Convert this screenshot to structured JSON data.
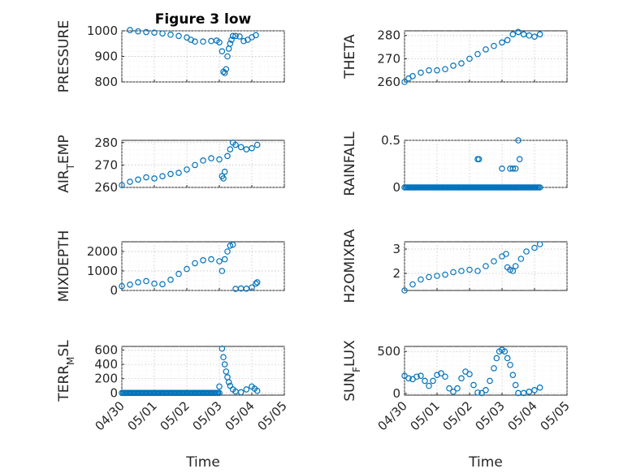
{
  "colors": {
    "marker": "#0072BD",
    "axes": "#262626"
  },
  "chart_data": [
    {
      "type": "scatter",
      "panel": 0,
      "title": "Figure 3 low",
      "ylabel": "PRESSURE",
      "ylabel_sub": "",
      "ylim": [
        800,
        1000
      ],
      "yticks": [
        800,
        900,
        1000
      ],
      "xlim": [
        "04/30",
        "05/05"
      ],
      "xticks": [
        "04/30",
        "05/01",
        "05/02",
        "05/03",
        "05/04",
        "05/05"
      ],
      "show_xticklabels": false,
      "xlabel": "",
      "grid": true,
      "points": [
        [
          "04/30 06:00",
          1003
        ],
        [
          "04/30 12:00",
          998
        ],
        [
          "04/30 18:00",
          995
        ],
        [
          "05/01 00:00",
          993
        ],
        [
          "05/01 06:00",
          990
        ],
        [
          "05/01 12:00",
          985
        ],
        [
          "05/01 18:00",
          980
        ],
        [
          "05/02 00:00",
          974
        ],
        [
          "05/02 03:00",
          965
        ],
        [
          "05/02 06:00",
          958
        ],
        [
          "05/02 12:00",
          958
        ],
        [
          "05/02 18:00",
          960
        ],
        [
          "05/02 22:00",
          962
        ],
        [
          "05/03 00:00",
          955
        ],
        [
          "05/03 02:00",
          920
        ],
        [
          "05/03 03:00",
          840
        ],
        [
          "05/03 04:00",
          835
        ],
        [
          "05/03 05:00",
          850
        ],
        [
          "05/03 06:00",
          900
        ],
        [
          "05/03 07:00",
          930
        ],
        [
          "05/03 08:00",
          950
        ],
        [
          "05/03 09:00",
          965
        ],
        [
          "05/03 10:00",
          980
        ],
        [
          "05/03 12:00",
          980
        ],
        [
          "05/03 15:00",
          978
        ],
        [
          "05/03 18:00",
          960
        ],
        [
          "05/03 21:00",
          965
        ],
        [
          "05/04 00:00",
          975
        ],
        [
          "05/04 03:00",
          983
        ]
      ]
    },
    {
      "type": "scatter",
      "panel": 1,
      "title": "",
      "ylabel": "THETA",
      "ylabel_sub": "",
      "ylim": [
        260,
        282
      ],
      "yticks": [
        260,
        270,
        280
      ],
      "xlim": [
        "04/30",
        "05/05"
      ],
      "xticks": [
        "04/30",
        "05/01",
        "05/02",
        "05/03",
        "05/04",
        "05/05"
      ],
      "show_xticklabels": false,
      "xlabel": "",
      "grid": true,
      "points": [
        [
          "04/30 00:00",
          260
        ],
        [
          "04/30 03:00",
          261.5
        ],
        [
          "04/30 06:00",
          262.5
        ],
        [
          "04/30 12:00",
          264
        ],
        [
          "04/30 18:00",
          265
        ],
        [
          "05/01 00:00",
          265
        ],
        [
          "05/01 06:00",
          265.5
        ],
        [
          "05/01 12:00",
          267
        ],
        [
          "05/01 18:00",
          268
        ],
        [
          "05/02 00:00",
          270
        ],
        [
          "05/02 06:00",
          272
        ],
        [
          "05/02 12:00",
          274
        ],
        [
          "05/02 18:00",
          275.5
        ],
        [
          "05/03 00:00",
          277
        ],
        [
          "05/03 04:00",
          278
        ],
        [
          "05/03 08:00",
          280.5
        ],
        [
          "05/03 12:00",
          281.5
        ],
        [
          "05/03 16:00",
          280.5
        ],
        [
          "05/03 20:00",
          280
        ],
        [
          "05/04 00:00",
          279.5
        ],
        [
          "05/04 04:00",
          280.5
        ]
      ]
    },
    {
      "type": "scatter",
      "panel": 2,
      "title": "",
      "ylabel": "AIR",
      "ylabel_sub": "T",
      "ylabel_rest": "EMP",
      "ylim": [
        260,
        281
      ],
      "yticks": [
        260,
        270,
        280
      ],
      "xlim": [
        "04/30",
        "05/05"
      ],
      "xticks": [
        "04/30",
        "05/01",
        "05/02",
        "05/03",
        "05/04",
        "05/05"
      ],
      "show_xticklabels": false,
      "xlabel": "",
      "grid": true,
      "points": [
        [
          "04/30 00:00",
          261
        ],
        [
          "04/30 06:00",
          262.5
        ],
        [
          "04/30 12:00",
          263.5
        ],
        [
          "04/30 18:00",
          264.5
        ],
        [
          "05/01 00:00",
          264
        ],
        [
          "05/01 06:00",
          265
        ],
        [
          "05/01 12:00",
          266
        ],
        [
          "05/01 18:00",
          266.5
        ],
        [
          "05/02 00:00",
          268
        ],
        [
          "05/02 06:00",
          270
        ],
        [
          "05/02 12:00",
          272
        ],
        [
          "05/02 18:00",
          273
        ],
        [
          "05/03 00:00",
          272.5
        ],
        [
          "05/03 02:00",
          265
        ],
        [
          "05/03 03:00",
          264
        ],
        [
          "05/03 04:00",
          267
        ],
        [
          "05/03 06:00",
          274
        ],
        [
          "05/03 08:00",
          277
        ],
        [
          "05/03 10:00",
          280
        ],
        [
          "05/03 12:00",
          279
        ],
        [
          "05/03 16:00",
          278
        ],
        [
          "05/03 20:00",
          277
        ],
        [
          "05/04 00:00",
          277.5
        ],
        [
          "05/04 04:00",
          279
        ]
      ]
    },
    {
      "type": "scatter",
      "panel": 3,
      "title": "",
      "ylabel": "RAINFALL",
      "ylabel_sub": "",
      "ylim": [
        0,
        0.5
      ],
      "yticks": [
        0,
        0.5
      ],
      "xlim": [
        "04/30",
        "05/05"
      ],
      "xticks": [
        "04/30",
        "05/01",
        "05/02",
        "05/03",
        "05/04",
        "05/05"
      ],
      "show_xticklabels": false,
      "xlabel": "",
      "grid": true,
      "baseline": {
        "from": "04/30 00:00",
        "to": "05/04 04:00",
        "value": 0
      },
      "points": [
        [
          "05/02 06:00",
          0.3
        ],
        [
          "05/02 07:00",
          0.3
        ],
        [
          "05/03 00:00",
          0.2
        ],
        [
          "05/03 06:00",
          0.2
        ],
        [
          "05/03 08:00",
          0.2
        ],
        [
          "05/03 10:00",
          0.2
        ],
        [
          "05/03 12:00",
          0.5
        ],
        [
          "05/03 13:00",
          0.3
        ]
      ]
    },
    {
      "type": "scatter",
      "panel": 4,
      "title": "",
      "ylabel": "MIXDEPTH",
      "ylabel_sub": "",
      "ylim": [
        0,
        2500
      ],
      "yticks": [
        0,
        1000,
        2000
      ],
      "xlim": [
        "04/30",
        "05/05"
      ],
      "xticks": [
        "04/30",
        "05/01",
        "05/02",
        "05/03",
        "05/04",
        "05/05"
      ],
      "show_xticklabels": false,
      "xlabel": "",
      "grid": true,
      "points": [
        [
          "04/30 00:00",
          220
        ],
        [
          "04/30 06:00",
          300
        ],
        [
          "04/30 12:00",
          420
        ],
        [
          "04/30 18:00",
          480
        ],
        [
          "05/01 00:00",
          350
        ],
        [
          "05/01 06:00",
          320
        ],
        [
          "05/01 12:00",
          550
        ],
        [
          "05/01 18:00",
          850
        ],
        [
          "05/02 00:00",
          1100
        ],
        [
          "05/02 06:00",
          1400
        ],
        [
          "05/02 12:00",
          1550
        ],
        [
          "05/02 18:00",
          1600
        ],
        [
          "05/03 00:00",
          1500
        ],
        [
          "05/03 02:00",
          1000
        ],
        [
          "05/03 04:00",
          1600
        ],
        [
          "05/03 06:00",
          2000
        ],
        [
          "05/03 08:00",
          2300
        ],
        [
          "05/03 10:00",
          2350
        ],
        [
          "05/03 12:00",
          80
        ],
        [
          "05/03 16:00",
          100
        ],
        [
          "05/03 20:00",
          90
        ],
        [
          "05/04 00:00",
          150
        ],
        [
          "05/04 03:00",
          350
        ],
        [
          "05/04 04:00",
          420
        ]
      ]
    },
    {
      "type": "scatter",
      "panel": 5,
      "title": "",
      "ylabel": "H2OMIXRA",
      "ylabel_sub": "",
      "ylim": [
        1.3,
        3.3
      ],
      "yticks": [
        2,
        3
      ],
      "xlim": [
        "04/30",
        "05/05"
      ],
      "xticks": [
        "04/30",
        "05/01",
        "05/02",
        "05/03",
        "05/04",
        "05/05"
      ],
      "show_xticklabels": false,
      "xlabel": "",
      "grid": true,
      "points": [
        [
          "04/30 00:00",
          1.3
        ],
        [
          "04/30 06:00",
          1.55
        ],
        [
          "04/30 12:00",
          1.75
        ],
        [
          "04/30 18:00",
          1.85
        ],
        [
          "05/01 00:00",
          1.9
        ],
        [
          "05/01 06:00",
          1.95
        ],
        [
          "05/01 12:00",
          2.05
        ],
        [
          "05/01 18:00",
          2.1
        ],
        [
          "05/02 00:00",
          2.15
        ],
        [
          "05/02 06:00",
          2.1
        ],
        [
          "05/02 12:00",
          2.3
        ],
        [
          "05/02 18:00",
          2.5
        ],
        [
          "05/03 00:00",
          2.7
        ],
        [
          "05/03 03:00",
          2.8
        ],
        [
          "05/03 04:00",
          2.25
        ],
        [
          "05/03 06:00",
          2.15
        ],
        [
          "05/03 08:00",
          2.1
        ],
        [
          "05/03 10:00",
          2.3
        ],
        [
          "05/03 14:00",
          2.6
        ],
        [
          "05/03 18:00",
          2.9
        ],
        [
          "05/04 00:00",
          3.05
        ],
        [
          "05/04 04:00",
          3.2
        ]
      ]
    },
    {
      "type": "scatter",
      "panel": 6,
      "title": "",
      "ylabel": "TERR",
      "ylabel_sub": "M",
      "ylabel_rest": "SL",
      "ylim": [
        -30,
        650
      ],
      "yticks": [
        0,
        200,
        400,
        600
      ],
      "xlim": [
        "04/30",
        "05/05"
      ],
      "xticks": [
        "04/30",
        "05/01",
        "05/02",
        "05/03",
        "05/04",
        "05/05"
      ],
      "show_xticklabels": true,
      "xlabel": "Time",
      "grid": true,
      "baseline": {
        "from": "04/30 00:00",
        "to": "05/03 00:00",
        "value": 0
      },
      "points": [
        [
          "05/03 00:00",
          90
        ],
        [
          "05/03 02:00",
          620
        ],
        [
          "05/03 03:00",
          500
        ],
        [
          "05/03 04:00",
          400
        ],
        [
          "05/03 05:00",
          300
        ],
        [
          "05/03 06:00",
          220
        ],
        [
          "05/03 07:00",
          150
        ],
        [
          "05/03 08:00",
          100
        ],
        [
          "05/03 10:00",
          50
        ],
        [
          "05/03 12:00",
          20
        ],
        [
          "05/03 16:00",
          10
        ],
        [
          "05/03 20:00",
          50
        ],
        [
          "05/04 00:00",
          90
        ],
        [
          "05/04 02:00",
          60
        ],
        [
          "05/04 04:00",
          30
        ]
      ]
    },
    {
      "type": "scatter",
      "panel": 7,
      "title": "",
      "ylabel": "SUN",
      "ylabel_sub": "F",
      "ylabel_rest": "LUX",
      "ylim": [
        -20,
        560
      ],
      "yticks": [
        0,
        500
      ],
      "xlim": [
        "04/30",
        "05/05"
      ],
      "xticks": [
        "04/30",
        "05/01",
        "05/02",
        "05/03",
        "05/04",
        "05/05"
      ],
      "show_xticklabels": true,
      "xlabel": "Time",
      "grid": true,
      "points": [
        [
          "04/30 00:00",
          210
        ],
        [
          "04/30 03:00",
          180
        ],
        [
          "04/30 06:00",
          170
        ],
        [
          "04/30 09:00",
          200
        ],
        [
          "04/30 12:00",
          210
        ],
        [
          "04/30 15:00",
          150
        ],
        [
          "04/30 18:00",
          90
        ],
        [
          "04/30 21:00",
          150
        ],
        [
          "05/01 00:00",
          220
        ],
        [
          "05/01 03:00",
          240
        ],
        [
          "05/01 06:00",
          200
        ],
        [
          "05/01 09:00",
          60
        ],
        [
          "05/01 12:00",
          20
        ],
        [
          "05/01 15:00",
          60
        ],
        [
          "05/01 18:00",
          180
        ],
        [
          "05/01 21:00",
          260
        ],
        [
          "05/02 00:00",
          230
        ],
        [
          "05/02 03:00",
          100
        ],
        [
          "05/02 06:00",
          10
        ],
        [
          "05/02 09:00",
          5
        ],
        [
          "05/02 12:00",
          40
        ],
        [
          "05/02 15:00",
          150
        ],
        [
          "05/02 18:00",
          300
        ],
        [
          "05/02 20:00",
          420
        ],
        [
          "05/02 22:00",
          500
        ],
        [
          "05/03 00:00",
          520
        ],
        [
          "05/03 02:00",
          500
        ],
        [
          "05/03 04:00",
          420
        ],
        [
          "05/03 06:00",
          340
        ],
        [
          "05/03 08:00",
          220
        ],
        [
          "05/03 10:00",
          100
        ],
        [
          "05/03 12:00",
          5
        ],
        [
          "05/03 16:00",
          5
        ],
        [
          "05/03 20:00",
          20
        ],
        [
          "05/04 00:00",
          40
        ],
        [
          "05/04 04:00",
          70
        ]
      ]
    }
  ]
}
